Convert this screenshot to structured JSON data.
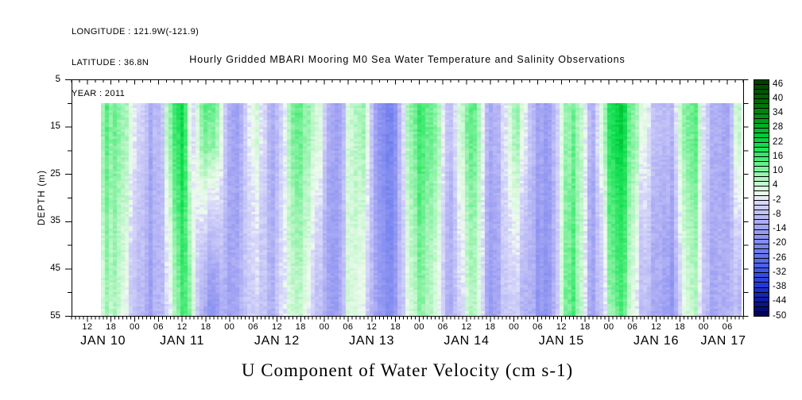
{
  "header": {
    "longitude": "LONGITUDE : 121.9W(-121.9)",
    "latitude": "LATITUDE : 36.8N",
    "year": "YEAR : 2011"
  },
  "title": "Hourly Gridded MBARI Mooring M0 Sea Water Temperature and Salinity Observations",
  "caption": "U Component of Water Velocity (cm s-1)",
  "colors": {
    "text": "#000000",
    "frame": "#000000",
    "background": "#ffffff"
  },
  "chart_data": {
    "type": "heatmap",
    "title": "Hourly Gridded MBARI Mooring M0 Sea Water Temperature and Salinity Observations",
    "caption": "U Component of Water Velocity (cm s-1)",
    "units": "cm s-1",
    "ylabel": "DEPTH (m)",
    "depth_range": [
      5,
      55
    ],
    "depth_ticks": [
      "5",
      "15",
      "25",
      "35",
      "45",
      "55"
    ],
    "time_axis": {
      "start": "JAN 10 2011 08:00",
      "end": "JAN 17 2011 10:00",
      "hours": 170,
      "first_midnight_hour": 16,
      "hour_label_first_offset": 4,
      "hour_label_step": 6
    },
    "hour_labels": [
      "12",
      "18",
      "00",
      "06",
      "12",
      "18",
      "00",
      "06",
      "12",
      "18",
      "00",
      "06",
      "12",
      "18",
      "00",
      "06",
      "12",
      "18",
      "00",
      "06",
      "12",
      "18",
      "00",
      "06",
      "12",
      "18",
      "00",
      "06"
    ],
    "day_labels": [
      "JAN 10",
      "JAN 11",
      "JAN 12",
      "JAN 13",
      "JAN 14",
      "JAN 15",
      "JAN 16",
      "JAN 17"
    ],
    "colorbar": {
      "min": -50,
      "max": 48,
      "cell_step": 2,
      "labels": [
        "46",
        "40",
        "34",
        "28",
        "22",
        "16",
        "10",
        "4",
        "-2",
        "-8",
        "-14",
        "-20",
        "-26",
        "-32",
        "-38",
        "-44",
        "-50"
      ],
      "stops": [
        [
          -50,
          "#000050"
        ],
        [
          -44,
          "#0a1896"
        ],
        [
          -38,
          "#1e34d2"
        ],
        [
          -32,
          "#3a52e4"
        ],
        [
          -26,
          "#5e70ec"
        ],
        [
          -20,
          "#7e8af0"
        ],
        [
          -14,
          "#9c9ef2"
        ],
        [
          -8,
          "#bcbcf6"
        ],
        [
          -2,
          "#dcdcfa"
        ],
        [
          0,
          "#f0faf0"
        ],
        [
          4,
          "#d2f8d8"
        ],
        [
          10,
          "#8cf2a6"
        ],
        [
          16,
          "#3ce96e"
        ],
        [
          22,
          "#06d948"
        ],
        [
          28,
          "#00b428"
        ],
        [
          34,
          "#008a10"
        ],
        [
          40,
          "#006400"
        ],
        [
          48,
          "#003c00"
        ]
      ]
    },
    "grid": {
      "comment_depths": "u velocity (cm/s), estimated from plot colors",
      "depths_m": [
        10,
        19,
        28,
        37,
        46,
        55
      ],
      "time_start_hour": 8.5,
      "time_step_hours": 2,
      "values": [
        [
          12,
          13,
          10,
          6,
          -2,
          -8,
          -11,
          -10,
          8,
          18,
          22,
          -6,
          10,
          15,
          14,
          -4,
          -12,
          -12,
          -6,
          5,
          -4,
          -10,
          -9,
          4,
          16,
          14,
          6,
          4,
          -8,
          -12,
          -10,
          6,
          10,
          8,
          -10,
          -18,
          -20,
          -14,
          4,
          14,
          16,
          15,
          12,
          -4,
          -8,
          6,
          13,
          11,
          -6,
          -10,
          -8,
          4,
          9,
          2,
          -10,
          -13,
          -12,
          -8,
          6,
          11,
          8,
          -6,
          -8,
          8,
          20,
          24,
          18,
          8,
          2,
          -4,
          -8,
          -10,
          -6,
          6,
          13,
          12,
          -4,
          -12,
          -13,
          -10,
          6
        ],
        [
          11,
          12,
          9,
          5,
          -3,
          -8,
          -11,
          -10,
          7,
          17,
          21,
          -5,
          8,
          12,
          11,
          -5,
          -12,
          -12,
          -6,
          4,
          -4,
          -10,
          -9,
          4,
          15,
          13,
          5,
          3,
          -8,
          -12,
          -10,
          6,
          9,
          7,
          -10,
          -18,
          -20,
          -14,
          3,
          13,
          15,
          14,
          11,
          -4,
          -8,
          5,
          12,
          10,
          -6,
          -10,
          -8,
          3,
          8,
          1,
          -10,
          -13,
          -12,
          -8,
          6,
          11,
          8,
          -6,
          -8,
          7,
          19,
          23,
          17,
          7,
          1,
          -5,
          -8,
          -11,
          -7,
          5,
          12,
          11,
          -4,
          -12,
          -13,
          -10,
          4
        ],
        [
          10,
          11,
          8,
          3,
          -4,
          -10,
          -12,
          -10,
          3,
          15,
          20,
          0,
          3,
          3,
          2,
          -7,
          -12,
          -11,
          -7,
          1,
          -6,
          -10,
          -8,
          3,
          13,
          11,
          2,
          -1,
          -10,
          -13,
          -9,
          6,
          8,
          4,
          -10,
          -17,
          -19,
          -13,
          2,
          12,
          14,
          12,
          9,
          -6,
          -10,
          2,
          10,
          8,
          -7,
          -12,
          -9,
          2,
          3,
          -3,
          -11,
          -14,
          -13,
          -9,
          7,
          12,
          8,
          -7,
          -10,
          3,
          16,
          20,
          15,
          4,
          -2,
          -6,
          -10,
          -12,
          -9,
          2,
          10,
          9,
          -6,
          -13,
          -13,
          -9,
          0
        ],
        [
          8,
          10,
          6,
          1,
          -6,
          -11,
          -12,
          -10,
          0,
          13,
          18,
          3,
          -2,
          -4,
          -5,
          -9,
          -12,
          -11,
          -7,
          -1,
          -7,
          -10,
          -7,
          3,
          11,
          9,
          0,
          -4,
          -11,
          -13,
          -9,
          6,
          6,
          2,
          -10,
          -17,
          -19,
          -13,
          0,
          10,
          12,
          10,
          7,
          -7,
          -11,
          0,
          8,
          6,
          -7,
          -13,
          -9,
          0,
          -1,
          -6,
          -11,
          -15,
          -13,
          -9,
          7,
          13,
          8,
          -7,
          -11,
          0,
          14,
          18,
          13,
          2,
          -5,
          -8,
          -11,
          -14,
          -11,
          0,
          8,
          7,
          -7,
          -13,
          -12,
          -9,
          -4
        ],
        [
          7,
          9,
          5,
          -1,
          -7,
          -11,
          -13,
          -10,
          -2,
          11,
          17,
          6,
          -5,
          -10,
          -11,
          -11,
          -12,
          -10,
          -8,
          -3,
          -7,
          -10,
          -6,
          2,
          9,
          7,
          -2,
          -6,
          -11,
          -14,
          -8,
          6,
          5,
          0,
          -10,
          -16,
          -18,
          -12,
          -1,
          9,
          11,
          9,
          5,
          -7,
          -11,
          -2,
          7,
          5,
          -8,
          -13,
          -10,
          -1,
          -4,
          -8,
          -12,
          -16,
          -14,
          -10,
          8,
          14,
          8,
          -8,
          -11,
          -2,
          12,
          16,
          11,
          0,
          -7,
          -9,
          -11,
          -15,
          -13,
          -2,
          7,
          5,
          -7,
          -14,
          -12,
          -8,
          -8
        ],
        [
          6,
          8,
          4,
          -2,
          -8,
          -12,
          -13,
          -10,
          -4,
          10,
          16,
          8,
          -8,
          -14,
          -15,
          -12,
          -12,
          -10,
          -8,
          -4,
          -8,
          -10,
          -6,
          2,
          8,
          6,
          -4,
          -8,
          -12,
          -14,
          -8,
          6,
          4,
          -2,
          -10,
          -16,
          -18,
          -12,
          -2,
          8,
          10,
          8,
          4,
          -8,
          -12,
          -4,
          6,
          4,
          -8,
          -14,
          -10,
          -2,
          -6,
          -10,
          -12,
          -16,
          -14,
          -10,
          8,
          14,
          8,
          -8,
          -12,
          -4,
          10,
          14,
          10,
          -2,
          -8,
          -10,
          -12,
          -16,
          -14,
          -4,
          6,
          4,
          -8,
          -14,
          -12,
          -8,
          -10
        ]
      ]
    }
  }
}
